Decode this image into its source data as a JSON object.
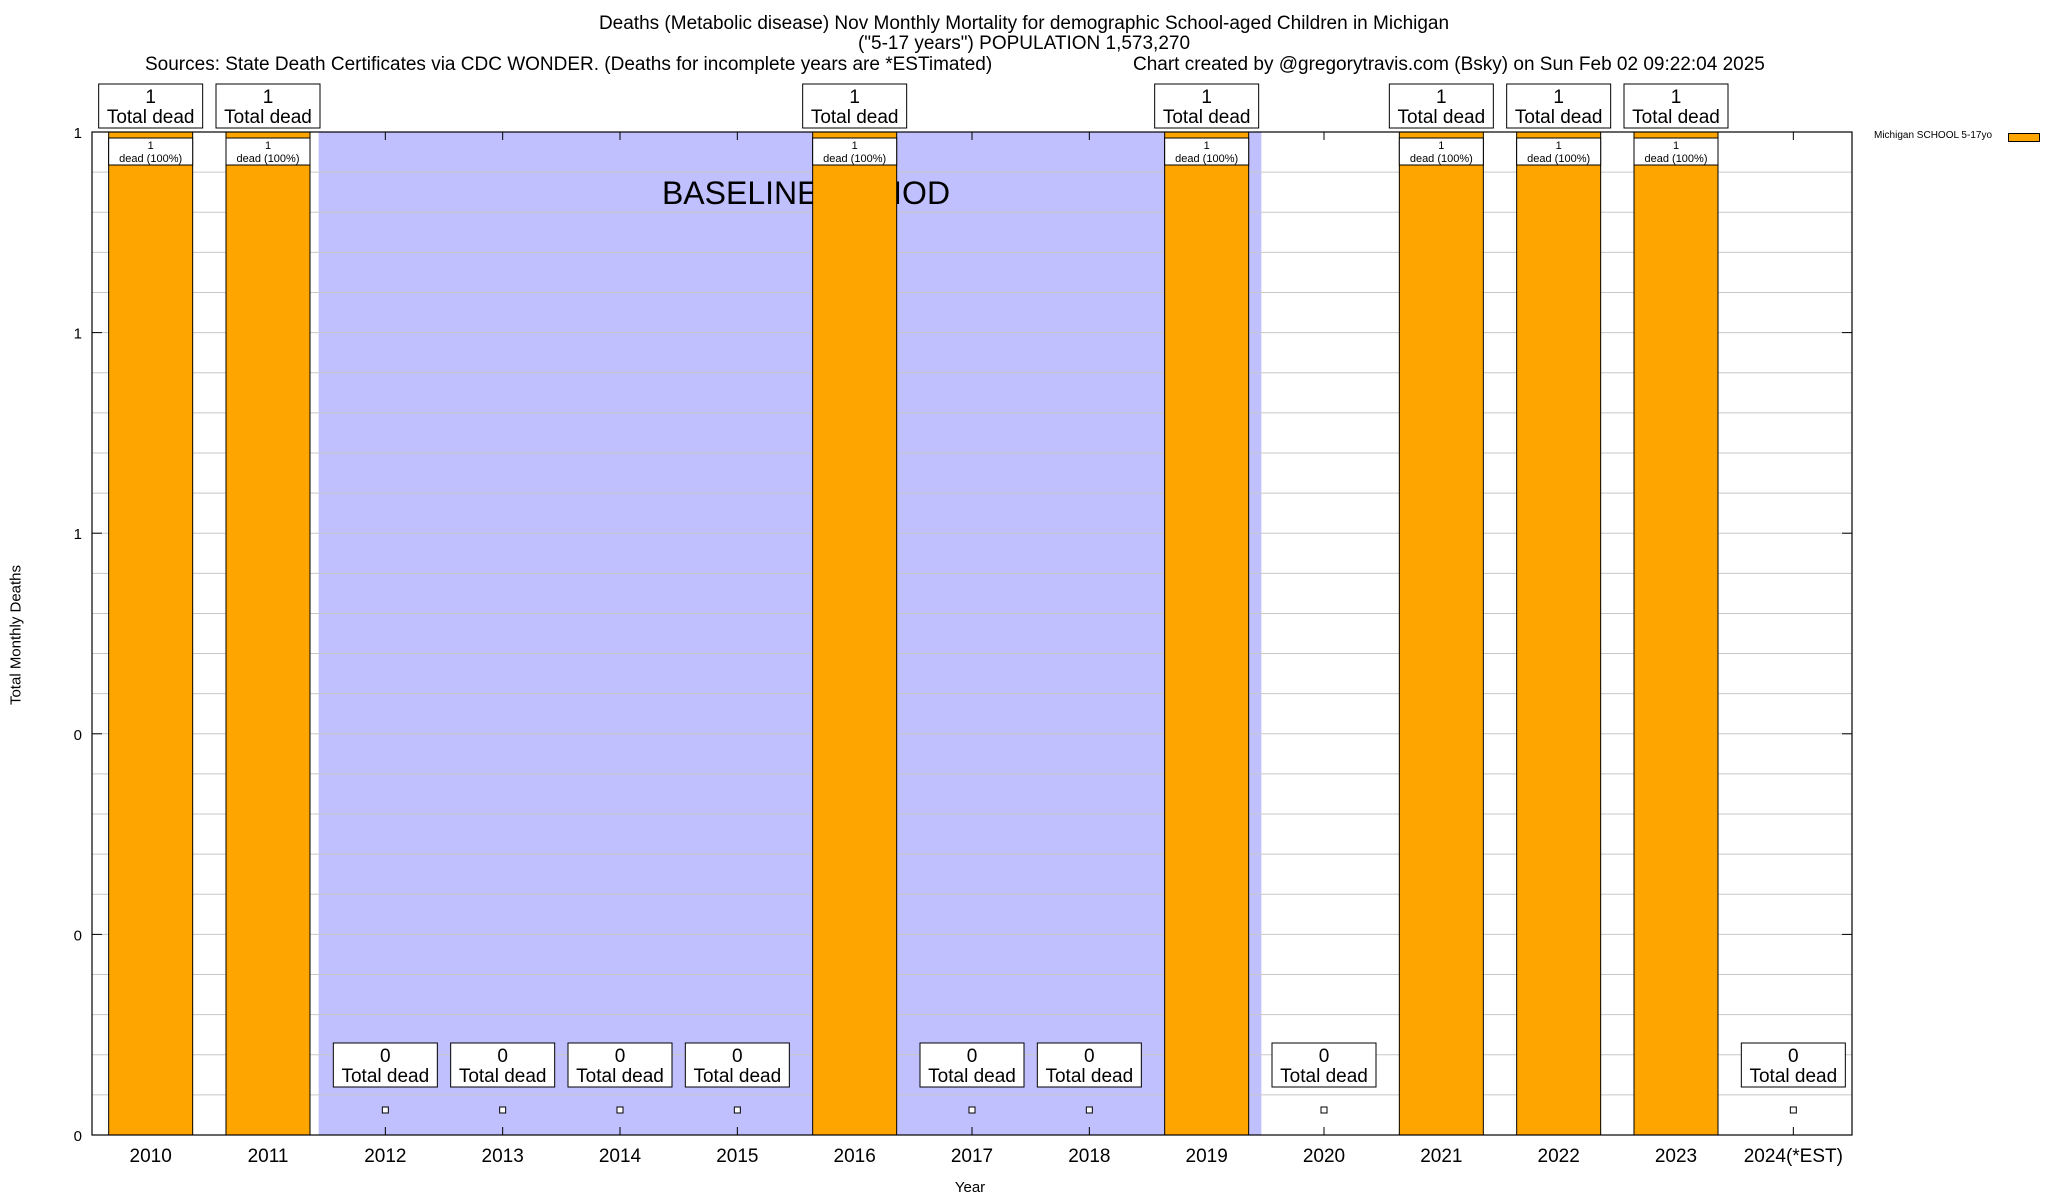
{
  "title_line1": "Deaths (Metabolic disease) Nov Monthly Mortality for demographic School-aged Children in Michigan",
  "title_line2": "(\"5-17 years\") POPULATION 1,573,270",
  "sources": "Sources: State Death Certificates via CDC WONDER. (Deaths for incomplete years are *ESTimated)",
  "credit": "Chart created by @gregorytravis.com (Bsky) on Sun Feb 02 09:22:04 2025",
  "baseline_label": "BASELINE PERIOD",
  "colors": {
    "bar": "#ffa500",
    "baseline": "#c0c0ff",
    "grid": "#c8c8c8"
  },
  "chart_data": {
    "type": "bar",
    "title": "Deaths (Metabolic disease) Nov Monthly Mortality for demographic School-aged Children in Michigan",
    "xlabel": "Year",
    "ylabel": "Total Monthly Deaths",
    "ylim": [
      0,
      1
    ],
    "yticks": [
      "0",
      "0",
      "0",
      "1",
      "1",
      "1"
    ],
    "grid": true,
    "legend_position": "top-right",
    "categories": [
      "2010",
      "2011",
      "2012",
      "2013",
      "2014",
      "2015",
      "2016",
      "2017",
      "2018",
      "2019",
      "2020",
      "2021",
      "2022",
      "2023",
      "2024(*EST)"
    ],
    "series": [
      {
        "name": "Michigan SCHOOL 5-17yo",
        "values": [
          1,
          1,
          0,
          0,
          0,
          0,
          1,
          0,
          0,
          1,
          0,
          1,
          1,
          1,
          0
        ]
      }
    ],
    "total_label": "Total dead",
    "segment_label": "dead (100%)",
    "baseline_range": [
      "2012",
      "2019"
    ]
  }
}
